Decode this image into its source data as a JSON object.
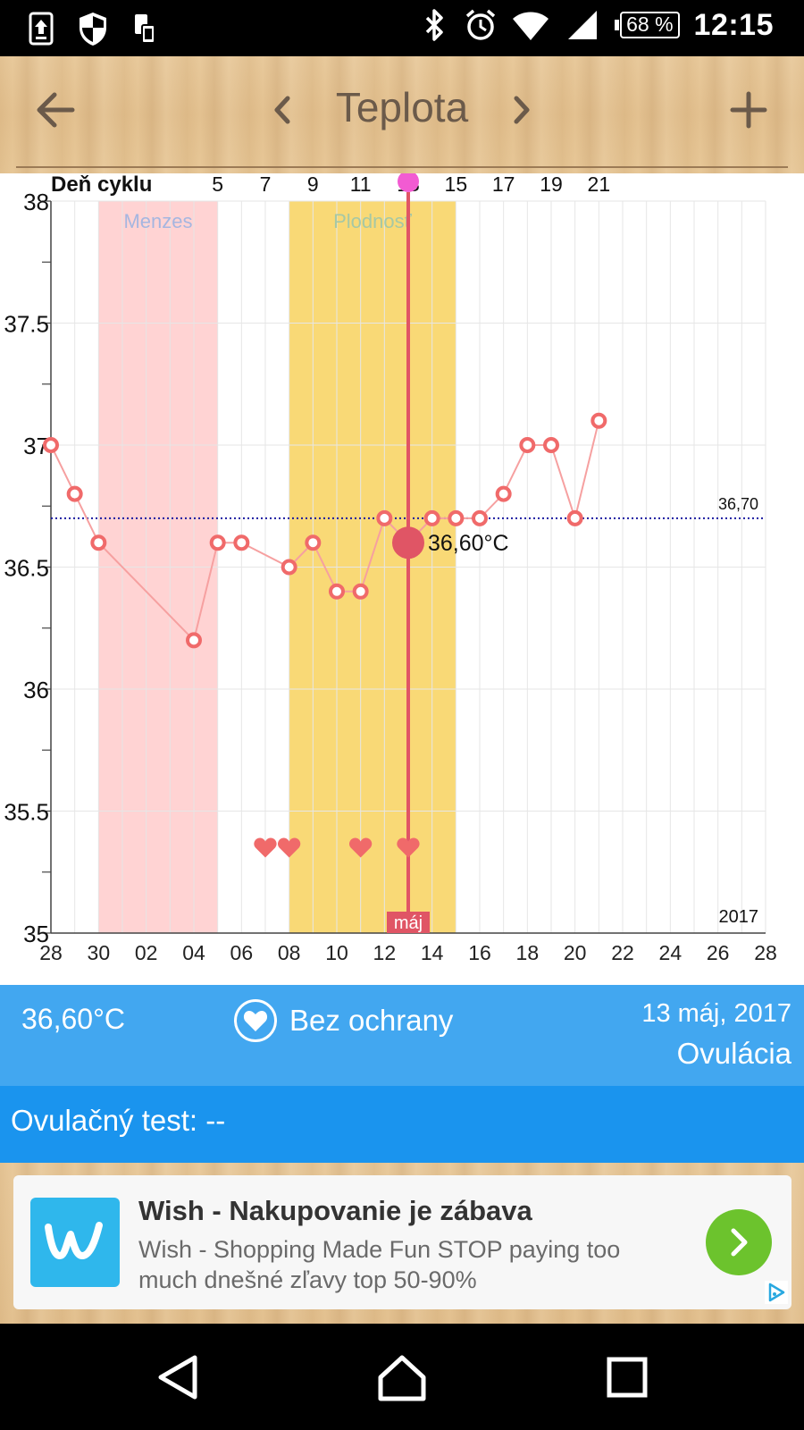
{
  "status_bar": {
    "icons_left": [
      "upload-icon",
      "shield-icon",
      "phone-storage-icon"
    ],
    "icons_right": [
      "bluetooth-icon",
      "alarm-icon",
      "wifi-icon",
      "signal-icon"
    ],
    "battery": "68 %",
    "time": "12:15"
  },
  "toolbar": {
    "title": "Teplota",
    "back_icon": "arrow-left-icon",
    "prev_icon": "chevron-left-icon",
    "next_icon": "chevron-right-icon",
    "add_icon": "plus-icon"
  },
  "chart_data": {
    "type": "line",
    "top_axis_label": "Deň cyklu",
    "cycle_day_ticks": [
      "5",
      "7",
      "9",
      "11",
      "13",
      "15",
      "17",
      "19",
      "21"
    ],
    "x_tick_labels": [
      "28",
      "30",
      "02",
      "04",
      "06",
      "08",
      "10",
      "12",
      "14",
      "16",
      "18",
      "20",
      "22",
      "24",
      "26",
      "28"
    ],
    "y_tick_labels": [
      "38",
      "37.5",
      "37",
      "36.5",
      "36",
      "35.5",
      "35"
    ],
    "ylim": [
      35,
      38
    ],
    "x_day_index_range": [
      0,
      30
    ],
    "year_label": "2017",
    "month_label": "máj",
    "series": [
      {
        "x": [
          0,
          1,
          2,
          6,
          7,
          8,
          10,
          11,
          12,
          13,
          14,
          15,
          16,
          17,
          18,
          19,
          20,
          21,
          22,
          23,
          24
        ],
        "values": [
          37.0,
          36.8,
          36.6,
          36.2,
          36.6,
          36.6,
          36.5,
          36.6,
          36.4,
          36.4,
          36.7,
          36.6,
          36.7,
          36.7,
          36.7,
          36.8,
          37.0,
          37.0,
          36.7,
          37.1,
          null
        ]
      }
    ],
    "coverline": {
      "value": 36.7,
      "label": "36,70"
    },
    "bands": [
      {
        "label": "Menzes",
        "from_day": 2,
        "to_day": 7,
        "color": "#ffd3d3"
      },
      {
        "label": "Plodnosť",
        "from_day": 10,
        "to_day": 17,
        "color": "#f9d976"
      }
    ],
    "selected": {
      "day": 15,
      "value": 36.6,
      "label": "36,60°C"
    },
    "intercourse_days": [
      9,
      10,
      13,
      15
    ],
    "colors": {
      "line": "#f6a0a0",
      "point": "#f06a6a",
      "selected": "#e05565",
      "coverline": "#1a1aa0"
    }
  },
  "info": {
    "temperature": "36,60°C",
    "protection": "Bez ochrany",
    "protection_icon": "heart-icon",
    "date": "13 máj, 2017",
    "phase": "Ovulácia"
  },
  "ovulation_test": {
    "label": "Ovulačný test: --"
  },
  "ad": {
    "title": "Wish - Nakupovanie je zábava",
    "description": "Wish - Shopping Made Fun STOP paying too much dnešné zľavy top 50-90%",
    "logo_icon": "wish-logo-icon",
    "go_icon": "chevron-right-icon"
  },
  "nav_bar": {
    "icons": [
      "back-triangle-icon",
      "home-icon",
      "recents-square-icon"
    ]
  }
}
